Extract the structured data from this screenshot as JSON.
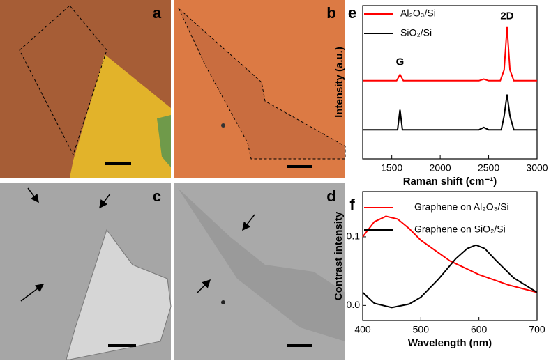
{
  "panels": [
    "a",
    "b",
    "c",
    "d"
  ],
  "chart_data": [
    {
      "type": "line",
      "panel_label": "e",
      "xlabel": "Raman shift (cm⁻¹)",
      "ylabel": "Intensity (a.u.)",
      "xlim": [
        1200,
        3000
      ],
      "xticks": [
        1500,
        2000,
        2500,
        3000
      ],
      "ylim": [
        0,
        100
      ],
      "series": [
        {
          "name": "Al₂O₃/Si",
          "color": "#ff0000",
          "x": [
            1200,
            1550,
            1585,
            1620,
            2400,
            2450,
            2500,
            2620,
            2660,
            2690,
            2720,
            2760,
            3000
          ],
          "values": [
            51,
            51,
            55,
            51,
            51,
            52,
            51,
            51,
            58,
            86,
            58,
            51,
            51
          ]
        },
        {
          "name": "SiO₂/Si",
          "color": "#000000",
          "x": [
            1200,
            1560,
            1585,
            1610,
            2400,
            2450,
            2500,
            2630,
            2660,
            2690,
            2720,
            2760,
            3000
          ],
          "values": [
            19,
            19,
            32,
            19,
            19,
            20.5,
            19,
            19,
            28,
            42,
            28,
            19,
            19
          ]
        }
      ],
      "annotations": [
        {
          "text": "G",
          "x": 1585,
          "y": 63
        },
        {
          "text": "2D",
          "x": 2690,
          "y": 93
        }
      ]
    },
    {
      "type": "line",
      "panel_label": "f",
      "xlabel": "Wavelength (nm)",
      "ylabel": "Contrast intensity",
      "xlim": [
        400,
        700
      ],
      "xticks": [
        400,
        500,
        600,
        700
      ],
      "ylim": [
        -0.022,
        0.166
      ],
      "yticks": [
        {
          "value": 0,
          "label": "0.0"
        },
        0.1
      ],
      "series": [
        {
          "name": "Graphene on Al₂O₃/Si",
          "color": "#ff0000",
          "x": [
            400,
            420,
            440,
            460,
            480,
            500,
            550,
            600,
            650,
            700
          ],
          "values": [
            0.1,
            0.122,
            0.13,
            0.126,
            0.112,
            0.095,
            0.065,
            0.045,
            0.03,
            0.019
          ]
        },
        {
          "name": "Graphene on SiO₂/Si",
          "color": "#000000",
          "x": [
            400,
            420,
            450,
            480,
            500,
            530,
            560,
            580,
            595,
            610,
            630,
            660,
            700
          ],
          "values": [
            0.019,
            0.003,
            -0.003,
            0.002,
            0.012,
            0.038,
            0.068,
            0.083,
            0.088,
            0.083,
            0.065,
            0.04,
            0.019
          ]
        }
      ]
    }
  ]
}
